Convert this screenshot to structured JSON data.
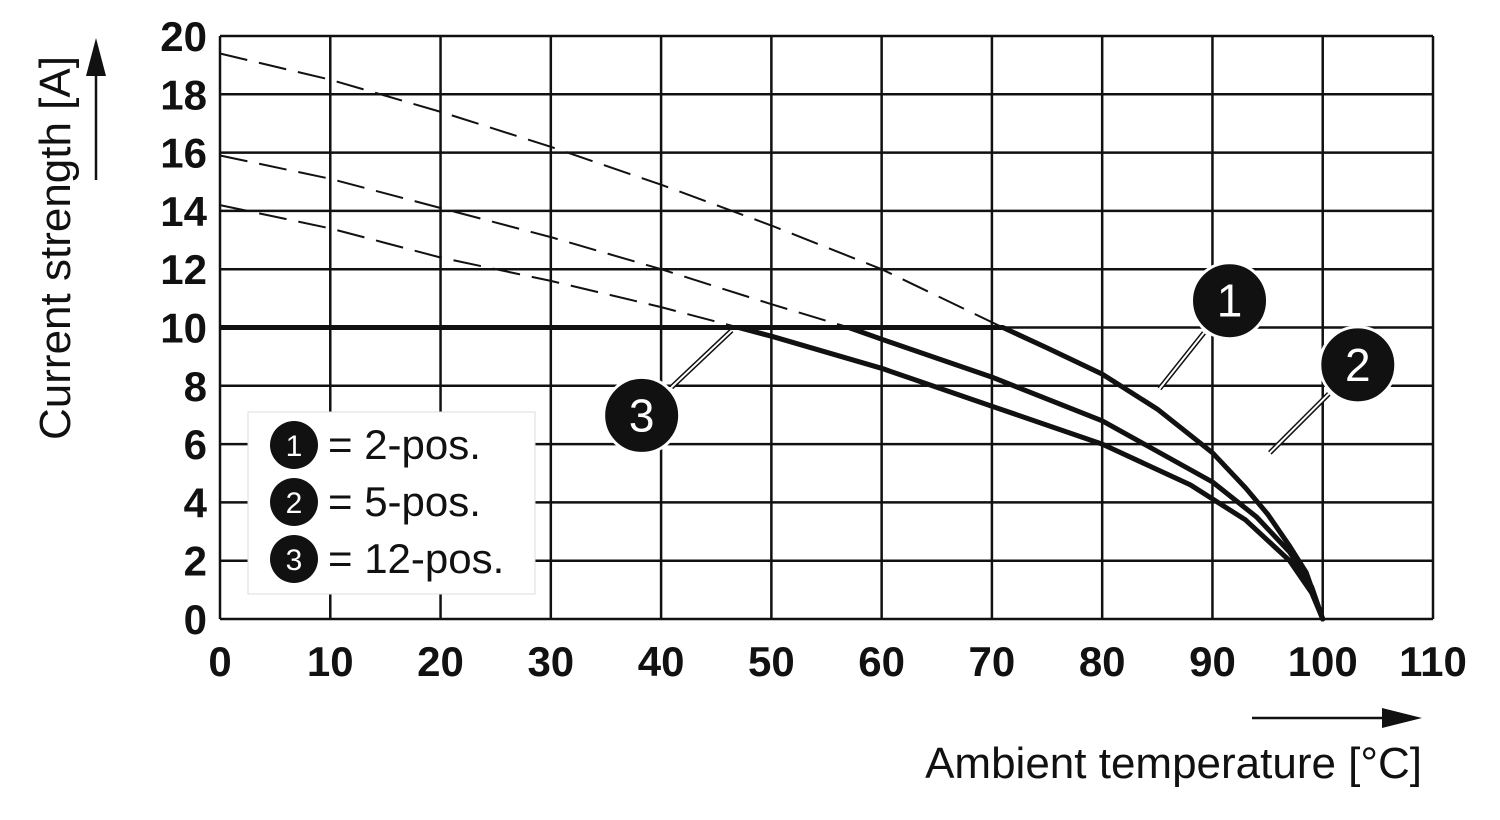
{
  "chart_data": {
    "type": "line",
    "xlabel": "Ambient temperature [°C]",
    "ylabel": "Current strength [A]",
    "xlim": [
      0,
      110
    ],
    "ylim": [
      0,
      20
    ],
    "xticks": [
      "0",
      "10",
      "20",
      "30",
      "40",
      "50",
      "60",
      "70",
      "80",
      "90",
      "100",
      "110"
    ],
    "yticks": [
      "0",
      "2",
      "4",
      "6",
      "8",
      "10",
      "12",
      "14",
      "16",
      "18",
      "20"
    ],
    "grid": true,
    "legend_position": "bottom-left",
    "legend": [
      {
        "marker": "1",
        "text": "= 2-pos."
      },
      {
        "marker": "2",
        "text": "= 5-pos."
      },
      {
        "marker": "3",
        "text": "= 12-pos."
      }
    ],
    "current_limit": {
      "x": [
        0,
        71
      ],
      "y": [
        10,
        10
      ]
    },
    "series": [
      {
        "marker": "1",
        "solid": {
          "x": [
            71,
            75,
            80,
            85,
            90,
            93,
            95,
            97,
            98.5,
            100
          ],
          "y": [
            10,
            9.3,
            8.4,
            7.2,
            5.7,
            4.5,
            3.6,
            2.5,
            1.6,
            0
          ]
        },
        "dashed": {
          "x": [
            0,
            10,
            20,
            30,
            40,
            50,
            60,
            71
          ],
          "y": [
            19.4,
            18.5,
            17.4,
            16.2,
            14.9,
            13.5,
            12.0,
            10
          ]
        }
      },
      {
        "marker": "2",
        "solid": {
          "x": [
            57,
            60,
            70,
            80,
            90,
            94,
            97,
            99,
            100
          ],
          "y": [
            10,
            9.6,
            8.3,
            6.8,
            4.7,
            3.5,
            2.3,
            1.1,
            0
          ]
        },
        "dashed": {
          "x": [
            0,
            10,
            20,
            30,
            40,
            50,
            57
          ],
          "y": [
            15.9,
            15.1,
            14.1,
            13.1,
            12.0,
            10.8,
            10
          ]
        }
      },
      {
        "marker": "3",
        "solid": {
          "x": [
            47,
            50,
            60,
            70,
            80,
            88,
            93,
            97,
            99,
            100
          ],
          "y": [
            10,
            9.7,
            8.6,
            7.3,
            6.0,
            4.6,
            3.4,
            2.0,
            0.9,
            0
          ]
        },
        "dashed": {
          "x": [
            0,
            10,
            20,
            30,
            40,
            47
          ],
          "y": [
            14.2,
            13.4,
            12.4,
            11.6,
            10.7,
            10
          ]
        }
      }
    ],
    "callouts": [
      {
        "label": "1",
        "at": {
          "x": 85.2,
          "y": 7.9
        }
      },
      {
        "label": "2",
        "at": {
          "x": 95.2,
          "y": 5.7
        }
      },
      {
        "label": "3",
        "at": {
          "x": 46.4,
          "y": 9.9
        }
      }
    ]
  }
}
